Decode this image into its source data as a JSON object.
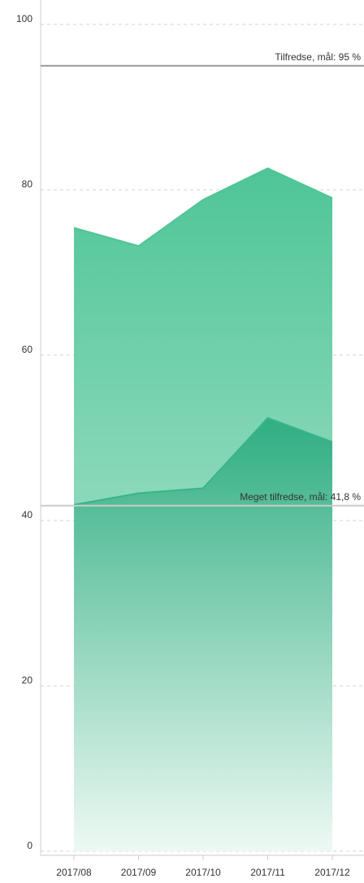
{
  "chart_data": {
    "type": "area",
    "categories": [
      "2017/08",
      "2017/09",
      "2017/10",
      "2017/11",
      "2017/12"
    ],
    "series": [
      {
        "color": "#4fc597",
        "values": [
          75.4,
          73.2,
          78.8,
          82.6,
          79.0
        ]
      },
      {
        "color": "#38b48a",
        "values": [
          41.9,
          43.3,
          43.9,
          52.4,
          49.5
        ]
      }
    ],
    "ylim": [
      0,
      100
    ],
    "yticks": [
      0,
      20,
      40,
      60,
      80,
      100
    ],
    "grid": true,
    "reference_lines": [
      {
        "value": 95,
        "label": "Tilfredse, mål: 95 %"
      },
      {
        "value": 41.8,
        "label": "Meget tilfredse, mål: 41,8 %"
      }
    ]
  }
}
